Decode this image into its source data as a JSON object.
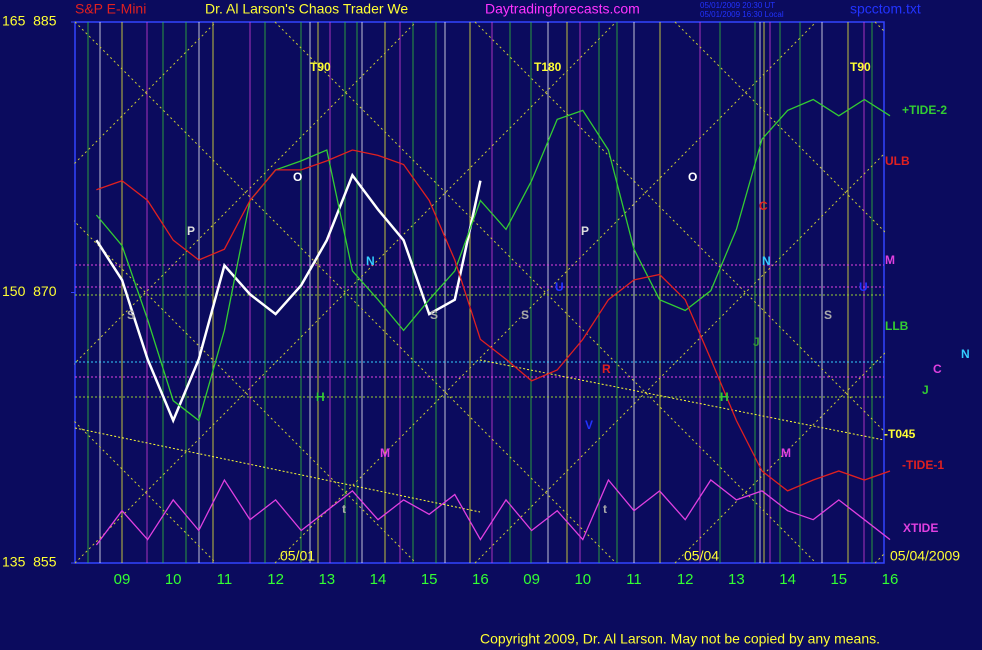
{
  "header": {
    "symbol": "S&P E-Mini",
    "title": "Dr. Al Larson's Chaos Trader We",
    "site": "Daytradingforecasts.com",
    "time_ut": "05/01/2009 20:30 UT",
    "time_local": "05/01/2009 16:30 Local",
    "file": "spcctom.txt"
  },
  "footer": {
    "copyright": "Copyright 2009, Dr. Al Larson. May not be copied by any means."
  },
  "chart_data": {
    "type": "line",
    "categories": [
      null,
      "09",
      null,
      "10",
      null,
      "11",
      null,
      "12",
      null,
      "13",
      null,
      "14",
      null,
      "15",
      null,
      "16",
      null,
      "09",
      null,
      "10",
      null,
      "11",
      null,
      "12",
      null,
      "13",
      null,
      "14",
      null,
      "15",
      null,
      "16"
    ],
    "ylim": [
      855,
      885
    ],
    "yticks": [
      {
        "value": 885,
        "label": "165  885"
      },
      {
        "value": 870,
        "label": "150  870"
      },
      {
        "value": 855,
        "label": "135  855"
      }
    ],
    "series": [
      {
        "color": "#ffffff",
        "values": [
          872.9,
          870.7,
          866.3,
          862.9,
          866.3,
          871.5,
          869.9,
          868.8,
          870.4,
          872.9,
          876.5,
          874.6,
          872.9,
          868.8,
          869.6,
          876.2,
          null,
          null,
          null,
          null,
          null,
          null,
          null,
          null,
          null,
          null,
          null,
          null,
          null,
          null,
          null,
          null
        ]
      },
      {
        "name": "+TIDE-2",
        "color": "#33cc33",
        "values": [
          874.3,
          872.6,
          868.5,
          864.0,
          862.9,
          867.9,
          875.1,
          876.8,
          877.3,
          877.9,
          871.2,
          869.6,
          867.9,
          869.6,
          871.2,
          875.1,
          873.5,
          876.2,
          879.6,
          880.1,
          877.9,
          872.4,
          869.6,
          869.0,
          870.1,
          873.5,
          878.5,
          880.1,
          880.7,
          879.8,
          880.7,
          879.8
        ]
      },
      {
        "name": "-TIDE-1",
        "color": "#e02020",
        "values": [
          875.7,
          876.2,
          875.1,
          872.9,
          871.8,
          872.4,
          875.1,
          876.8,
          876.8,
          877.3,
          877.9,
          877.6,
          877.1,
          875.1,
          871.8,
          867.4,
          866.3,
          865.1,
          865.7,
          867.4,
          869.6,
          870.7,
          871.0,
          869.6,
          866.3,
          862.9,
          860.1,
          859.0,
          859.6,
          860.1,
          859.6,
          860.1
        ]
      },
      {
        "name": "XTIDE",
        "color": "#e040e0",
        "values": [
          856.0,
          857.9,
          856.3,
          858.5,
          856.8,
          859.6,
          857.4,
          858.5,
          856.8,
          857.9,
          859.0,
          857.4,
          858.5,
          857.7,
          858.8,
          856.3,
          858.5,
          856.8,
          857.9,
          856.3,
          859.6,
          857.9,
          859.0,
          857.4,
          859.6,
          858.5,
          859.0,
          857.9,
          857.4,
          858.5,
          857.4,
          856.3
        ]
      }
    ],
    "dates": [
      "05/01",
      "05/04",
      "05/04/2009"
    ],
    "annotations": [
      {
        "text": "T90",
        "color": "#ffff33"
      },
      {
        "text": "T180",
        "color": "#ffff33"
      },
      {
        "text": "T90",
        "color": "#ffff33"
      },
      {
        "text": "O",
        "color": "#ffffff"
      },
      {
        "text": "O",
        "color": "#ffffff"
      },
      {
        "text": "P",
        "color": "#dddddd"
      },
      {
        "text": "P",
        "color": "#dddddd"
      },
      {
        "text": "N",
        "color": "#33ccff"
      },
      {
        "text": "N",
        "color": "#33ccff"
      },
      {
        "text": "S",
        "color": "#aaaaaa"
      },
      {
        "text": "S",
        "color": "#aaaaaa"
      },
      {
        "text": "S",
        "color": "#aaaaaa"
      },
      {
        "text": "S",
        "color": "#aaaaaa"
      },
      {
        "text": "H",
        "color": "#33cc33"
      },
      {
        "text": "H",
        "color": "#33cc33"
      },
      {
        "text": "M",
        "color": "#e040e0"
      },
      {
        "text": "M",
        "color": "#e040e0"
      },
      {
        "text": "t",
        "color": "#aaaaaa"
      },
      {
        "text": "t",
        "color": "#aaaaaa"
      },
      {
        "text": "R",
        "color": "#e02020"
      },
      {
        "text": "C",
        "color": "#e02020"
      },
      {
        "text": "J",
        "color": "#339933"
      },
      {
        "text": "V",
        "color": "#2233ff"
      },
      {
        "text": "U",
        "color": "#2233ff"
      },
      {
        "text": "U",
        "color": "#2233ff"
      },
      {
        "text": "ULB",
        "color": "#e02020"
      },
      {
        "text": "M",
        "color": "#e040e0"
      },
      {
        "text": "LLB",
        "color": "#33cc33"
      },
      {
        "text": "C",
        "color": "#e040e0"
      },
      {
        "text": "N",
        "color": "#33ccff"
      },
      {
        "text": "J",
        "color": "#33cc33"
      },
      {
        "text": "-T045",
        "color": "#ffff33"
      }
    ]
  }
}
